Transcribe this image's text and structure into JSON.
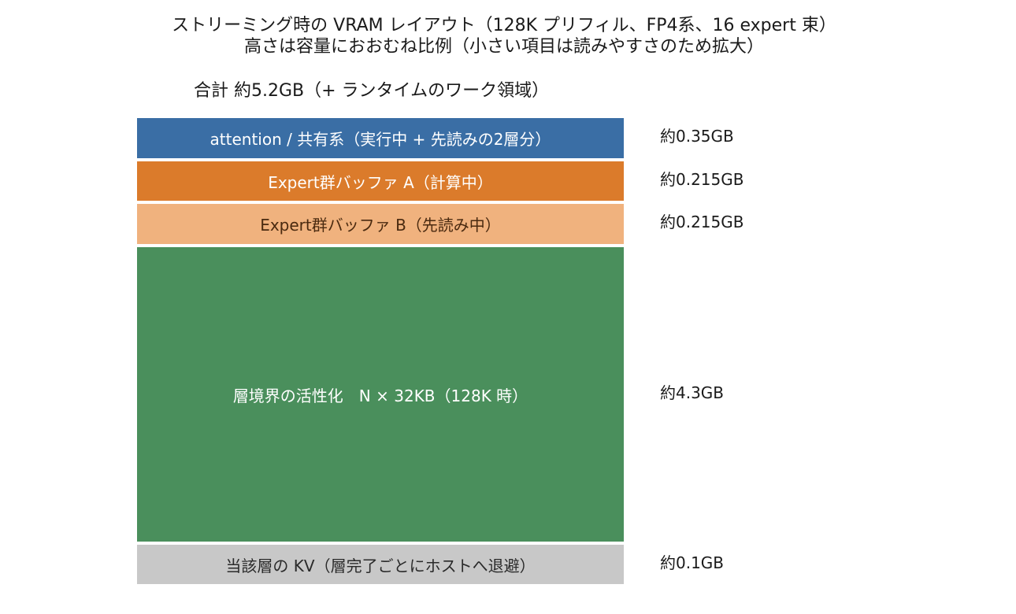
{
  "title": {
    "line1": "ストリーミング時の VRAM レイアウト（128K プリフィル、FP4系、16 expert 束）",
    "line2": "高さは容量におおむね比例（小さい項目は読みやすさのため拡大）"
  },
  "total_label": "合計 約5.2GB（+ ランタイムのワーク領域）",
  "blocks": [
    {
      "label": "attention / 共有系（実行中 + 先読みの2層分）",
      "size_label": "約0.35GB",
      "color": "#3a6ea5",
      "text_color": "#ffffff"
    },
    {
      "label": "Expert群バッファ A（計算中）",
      "size_label": "約0.215GB",
      "color": "#db7b2b",
      "text_color": "#ffffff"
    },
    {
      "label": "Expert群バッファ B（先読み中）",
      "size_label": "約0.215GB",
      "color": "#f0b27e",
      "text_color": "#4a2a10"
    },
    {
      "label": "層境界の活性化　N × 32KB（128K 時）",
      "size_label": "約4.3GB",
      "color": "#4a8f5c",
      "text_color": "#ffffff"
    },
    {
      "label": "当該層の KV（層完了ごとにホストへ退避）",
      "size_label": "約0.1GB",
      "color": "#c8c8c8",
      "text_color": "#2a2a2a"
    }
  ]
}
